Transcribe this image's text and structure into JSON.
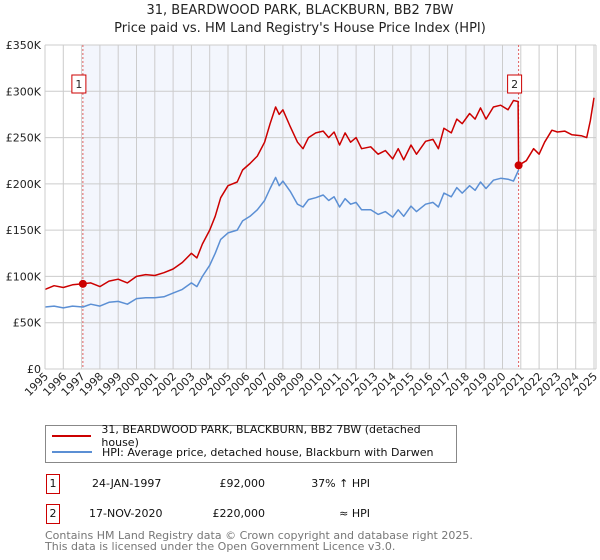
{
  "chart_data": {
    "type": "line",
    "title": "31, BEARDWOOD PARK, BLACKBURN, BB2 7BW",
    "subtitle": "Price paid vs. HM Land Registry's House Price Index (HPI)",
    "xlabel": "",
    "ylabel": "",
    "xlim": [
      1995,
      2025.1
    ],
    "ylim": [
      0,
      350000
    ],
    "grid": true,
    "y_ticks": [
      {
        "v": 0,
        "label": "£0"
      },
      {
        "v": 50000,
        "label": "£50K"
      },
      {
        "v": 100000,
        "label": "£100K"
      },
      {
        "v": 150000,
        "label": "£150K"
      },
      {
        "v": 200000,
        "label": "£200K"
      },
      {
        "v": 250000,
        "label": "£250K"
      },
      {
        "v": 300000,
        "label": "£300K"
      },
      {
        "v": 350000,
        "label": "£350K"
      }
    ],
    "x_ticks": [
      "1995",
      "1996",
      "1997",
      "1998",
      "1999",
      "2000",
      "2001",
      "2002",
      "2003",
      "2004",
      "2005",
      "2006",
      "2007",
      "2008",
      "2009",
      "2010",
      "2011",
      "2012",
      "2013",
      "2014",
      "2015",
      "2016",
      "2017",
      "2018",
      "2019",
      "2020",
      "2021",
      "2022",
      "2023",
      "2024",
      "2025"
    ],
    "shaded_range": [
      1997.07,
      2020.88
    ],
    "series": [
      {
        "name": "31, BEARDWOOD PARK, BLACKBURN, BB2 7BW (detached house)",
        "color": "#cc0000",
        "points": [
          [
            1995,
            86
          ],
          [
            1995.5,
            90
          ],
          [
            1996,
            88
          ],
          [
            1996.5,
            91
          ],
          [
            1997.07,
            92
          ],
          [
            1997.5,
            93
          ],
          [
            1998,
            89
          ],
          [
            1998.5,
            95
          ],
          [
            1999,
            97
          ],
          [
            1999.5,
            93
          ],
          [
            2000,
            100
          ],
          [
            2000.5,
            102
          ],
          [
            2001,
            101
          ],
          [
            2001.5,
            104
          ],
          [
            2002,
            108
          ],
          [
            2002.5,
            115
          ],
          [
            2003,
            125
          ],
          [
            2003.3,
            120
          ],
          [
            2003.6,
            135
          ],
          [
            2004,
            150
          ],
          [
            2004.3,
            165
          ],
          [
            2004.6,
            185
          ],
          [
            2005,
            198
          ],
          [
            2005.5,
            202
          ],
          [
            2005.8,
            215
          ],
          [
            2006.2,
            222
          ],
          [
            2006.6,
            230
          ],
          [
            2007,
            245
          ],
          [
            2007.3,
            265
          ],
          [
            2007.6,
            283
          ],
          [
            2007.8,
            275
          ],
          [
            2008,
            280
          ],
          [
            2008.4,
            262
          ],
          [
            2008.8,
            245
          ],
          [
            2009.1,
            238
          ],
          [
            2009.4,
            250
          ],
          [
            2009.8,
            255
          ],
          [
            2010.2,
            257
          ],
          [
            2010.5,
            250
          ],
          [
            2010.8,
            256
          ],
          [
            2011.1,
            242
          ],
          [
            2011.4,
            255
          ],
          [
            2011.7,
            245
          ],
          [
            2012,
            250
          ],
          [
            2012.3,
            238
          ],
          [
            2012.8,
            240
          ],
          [
            2013.2,
            232
          ],
          [
            2013.6,
            236
          ],
          [
            2014,
            227
          ],
          [
            2014.3,
            238
          ],
          [
            2014.6,
            226
          ],
          [
            2015,
            242
          ],
          [
            2015.3,
            232
          ],
          [
            2015.8,
            246
          ],
          [
            2016.2,
            248
          ],
          [
            2016.5,
            238
          ],
          [
            2016.8,
            260
          ],
          [
            2017.2,
            255
          ],
          [
            2017.5,
            270
          ],
          [
            2017.8,
            265
          ],
          [
            2018.2,
            276
          ],
          [
            2018.5,
            270
          ],
          [
            2018.8,
            282
          ],
          [
            2019.1,
            270
          ],
          [
            2019.5,
            283
          ],
          [
            2019.9,
            285
          ],
          [
            2020.3,
            280
          ],
          [
            2020.6,
            290
          ],
          [
            2020.85,
            289
          ],
          [
            2020.88,
            220
          ],
          [
            2021.3,
            225
          ],
          [
            2021.7,
            238
          ],
          [
            2022,
            232
          ],
          [
            2022.3,
            245
          ],
          [
            2022.7,
            258
          ],
          [
            2023,
            256
          ],
          [
            2023.4,
            257
          ],
          [
            2023.8,
            253
          ],
          [
            2024.3,
            252
          ],
          [
            2024.6,
            250
          ],
          [
            2024.8,
            268
          ],
          [
            2025,
            293
          ]
        ]
      },
      {
        "name": "HPI: Average price, detached house, Blackburn with Darwen",
        "color": "#5b8fd4",
        "points": [
          [
            1995,
            67
          ],
          [
            1995.5,
            68
          ],
          [
            1996,
            66
          ],
          [
            1996.5,
            68
          ],
          [
            1997.07,
            67
          ],
          [
            1997.5,
            70
          ],
          [
            1998,
            68
          ],
          [
            1998.5,
            72
          ],
          [
            1999,
            73
          ],
          [
            1999.5,
            70
          ],
          [
            2000,
            76
          ],
          [
            2000.5,
            77
          ],
          [
            2001,
            77
          ],
          [
            2001.5,
            78
          ],
          [
            2002,
            82
          ],
          [
            2002.5,
            86
          ],
          [
            2003,
            93
          ],
          [
            2003.3,
            89
          ],
          [
            2003.6,
            100
          ],
          [
            2004,
            112
          ],
          [
            2004.3,
            125
          ],
          [
            2004.6,
            140
          ],
          [
            2005,
            147
          ],
          [
            2005.5,
            150
          ],
          [
            2005.8,
            160
          ],
          [
            2006.2,
            165
          ],
          [
            2006.6,
            172
          ],
          [
            2007,
            182
          ],
          [
            2007.3,
            195
          ],
          [
            2007.6,
            207
          ],
          [
            2007.8,
            198
          ],
          [
            2008,
            203
          ],
          [
            2008.4,
            192
          ],
          [
            2008.8,
            178
          ],
          [
            2009.1,
            175
          ],
          [
            2009.4,
            183
          ],
          [
            2009.8,
            185
          ],
          [
            2010.2,
            188
          ],
          [
            2010.5,
            182
          ],
          [
            2010.8,
            186
          ],
          [
            2011.1,
            175
          ],
          [
            2011.4,
            184
          ],
          [
            2011.7,
            178
          ],
          [
            2012,
            180
          ],
          [
            2012.3,
            172
          ],
          [
            2012.8,
            172
          ],
          [
            2013.2,
            167
          ],
          [
            2013.6,
            170
          ],
          [
            2014,
            164
          ],
          [
            2014.3,
            172
          ],
          [
            2014.6,
            165
          ],
          [
            2015,
            176
          ],
          [
            2015.3,
            170
          ],
          [
            2015.8,
            178
          ],
          [
            2016.2,
            180
          ],
          [
            2016.5,
            175
          ],
          [
            2016.8,
            190
          ],
          [
            2017.2,
            186
          ],
          [
            2017.5,
            196
          ],
          [
            2017.8,
            190
          ],
          [
            2018.2,
            198
          ],
          [
            2018.5,
            193
          ],
          [
            2018.8,
            202
          ],
          [
            2019.1,
            195
          ],
          [
            2019.5,
            204
          ],
          [
            2019.9,
            206
          ],
          [
            2020.3,
            205
          ],
          [
            2020.6,
            203
          ],
          [
            2020.88,
            215
          ]
        ]
      }
    ],
    "value_unit": "thousands GBP",
    "annotations": [
      {
        "label": "1",
        "x": 1997.07,
        "y": 92000
      },
      {
        "label": "2",
        "x": 2020.88,
        "y": 220000
      }
    ]
  },
  "sales": [
    {
      "num": "1",
      "date": "24-JAN-1997",
      "price": "£92,000",
      "hpi": "37% ↑ HPI"
    },
    {
      "num": "2",
      "date": "17-NOV-2020",
      "price": "£220,000",
      "hpi": "≈ HPI"
    }
  ],
  "footer": {
    "line1": "Contains HM Land Registry data © Crown copyright and database right 2025.",
    "line2": "This data is licensed under the Open Government Licence v3.0."
  }
}
